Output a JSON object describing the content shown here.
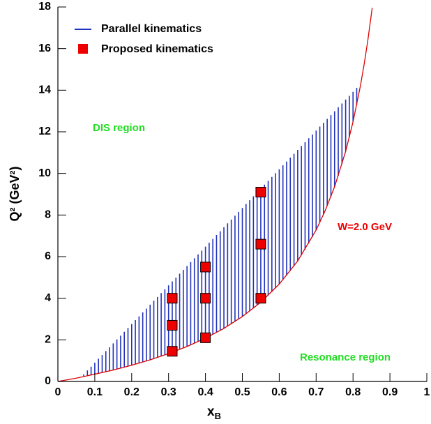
{
  "chart_data": {
    "type": "scatter",
    "xlabel": [
      "x",
      "B"
    ],
    "ylabel": "Q² (GeV²)",
    "xlim": [
      0,
      1
    ],
    "ylim": [
      0,
      18
    ],
    "xticks": [
      0,
      0.1,
      0.2,
      0.3,
      0.4,
      0.5,
      0.6,
      0.7,
      0.8,
      0.9,
      1
    ],
    "yticks": [
      0,
      2,
      4,
      6,
      8,
      10,
      12,
      14,
      16,
      18
    ],
    "legend": "upper left",
    "series": [
      {
        "name": "Parallel kinematics",
        "color": "#2233bb",
        "x": [
          0.07,
          0.08,
          0.09,
          0.1,
          0.11,
          0.12,
          0.13,
          0.14,
          0.15,
          0.16,
          0.17,
          0.18,
          0.19,
          0.2,
          0.21,
          0.22,
          0.23,
          0.24,
          0.25,
          0.26,
          0.27,
          0.28,
          0.29,
          0.3,
          0.31,
          0.32,
          0.33,
          0.34,
          0.35,
          0.36,
          0.37,
          0.38,
          0.39,
          0.4,
          0.41,
          0.42,
          0.43,
          0.44,
          0.45,
          0.46,
          0.47,
          0.48,
          0.49,
          0.5,
          0.51,
          0.52,
          0.53,
          0.54,
          0.55,
          0.56,
          0.57,
          0.58,
          0.59,
          0.6,
          0.61,
          0.62,
          0.63,
          0.64,
          0.65,
          0.66,
          0.67,
          0.68,
          0.69,
          0.7,
          0.71,
          0.72,
          0.73,
          0.74,
          0.75,
          0.76,
          0.77,
          0.78,
          0.79,
          0.8,
          0.81
        ],
        "low": [
          0.23,
          0.27,
          0.31,
          0.35,
          0.39,
          0.43,
          0.47,
          0.51,
          0.55,
          0.59,
          0.64,
          0.68,
          0.73,
          0.78,
          0.83,
          0.88,
          0.93,
          0.99,
          1.04,
          1.1,
          1.15,
          1.21,
          1.27,
          1.34,
          1.4,
          1.47,
          1.54,
          1.61,
          1.68,
          1.76,
          1.83,
          1.91,
          1.99,
          2.08,
          2.17,
          2.26,
          2.35,
          2.45,
          2.55,
          2.66,
          2.77,
          2.88,
          3.0,
          3.12,
          3.25,
          3.38,
          3.52,
          3.66,
          3.81,
          3.97,
          4.14,
          4.31,
          4.49,
          4.68,
          4.88,
          5.09,
          5.31,
          5.55,
          5.79,
          6.06,
          6.33,
          6.63,
          6.94,
          7.28,
          7.64,
          8.02,
          8.44,
          8.88,
          9.36,
          9.88,
          10.45,
          11.06,
          11.74,
          12.48,
          13.3
        ],
        "high": [
          0.34,
          0.53,
          0.71,
          0.9,
          1.09,
          1.27,
          1.46,
          1.64,
          1.83,
          2.02,
          2.2,
          2.39,
          2.57,
          2.76,
          2.95,
          3.13,
          3.32,
          3.5,
          3.69,
          3.88,
          4.06,
          4.25,
          4.43,
          4.62,
          4.81,
          4.99,
          5.18,
          5.36,
          5.55,
          5.74,
          5.92,
          6.11,
          6.29,
          6.48,
          6.67,
          6.85,
          7.04,
          7.22,
          7.41,
          7.6,
          7.78,
          7.97,
          8.15,
          8.34,
          8.53,
          8.71,
          8.9,
          9.08,
          9.27,
          9.46,
          9.64,
          9.83,
          10.01,
          10.2,
          10.39,
          10.57,
          10.76,
          10.94,
          11.13,
          11.32,
          11.5,
          11.69,
          11.87,
          12.06,
          12.25,
          12.43,
          12.62,
          12.8,
          12.99,
          13.18,
          13.36,
          13.55,
          13.73,
          13.92,
          14.11
        ]
      },
      {
        "name": "Proposed kinematics",
        "color": "#ee0000",
        "x": [
          0.31,
          0.31,
          0.31,
          0.4,
          0.4,
          0.4,
          0.55,
          0.55,
          0.55
        ],
        "values": [
          1.45,
          2.7,
          4.0,
          2.1,
          4.0,
          5.5,
          4.0,
          6.6,
          9.1
        ]
      }
    ],
    "curve": {
      "color": "#dd0000",
      "x": [
        0,
        0.05,
        0.1,
        0.15,
        0.2,
        0.25,
        0.3,
        0.35,
        0.4,
        0.45,
        0.5,
        0.55,
        0.6,
        0.65,
        0.7,
        0.725,
        0.75,
        0.78,
        0.8,
        0.82,
        0.83,
        0.84,
        0.852
      ],
      "values": [
        0,
        0.16,
        0.35,
        0.55,
        0.78,
        1.04,
        1.34,
        1.68,
        2.08,
        2.55,
        3.12,
        3.81,
        4.68,
        5.79,
        7.28,
        8.23,
        9.36,
        11.06,
        12.48,
        14.21,
        15.23,
        16.38,
        17.96
      ]
    },
    "annotations": [
      {
        "text": "DIS region",
        "color": "#22dd22"
      },
      {
        "text": "W=2.0 GeV",
        "color": "#ee0000"
      },
      {
        "text": "Resonance region",
        "color": "#22dd22"
      }
    ]
  }
}
